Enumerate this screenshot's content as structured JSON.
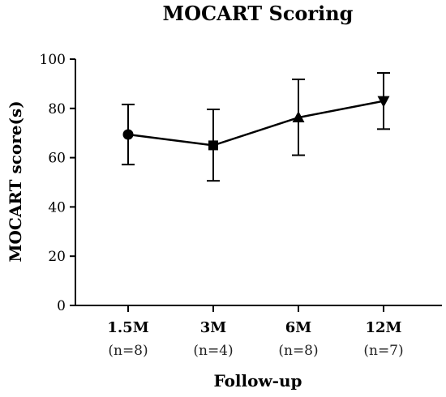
{
  "chart_data": {
    "type": "line",
    "title": "MOCART Scoring",
    "xlabel": "Follow-up",
    "ylabel": "MOCART score(s)",
    "ylim": [
      0,
      100
    ],
    "yticks": [
      0,
      20,
      40,
      60,
      80,
      100
    ],
    "categories": [
      "1.5M",
      "3M",
      "6M",
      "12M"
    ],
    "category_counts": [
      "(n=8)",
      "(n=4)",
      "(n=8)",
      "(n=7)"
    ],
    "series": [
      {
        "values": [
          69.4,
          65.0,
          76.3,
          83.0
        ],
        "error_low": [
          57.2,
          50.6,
          61.0,
          71.6
        ],
        "error_high": [
          81.6,
          79.6,
          91.8,
          94.4
        ],
        "markers": [
          "circle",
          "square",
          "triangle-up",
          "triangle-down"
        ]
      }
    ],
    "grid": false
  }
}
